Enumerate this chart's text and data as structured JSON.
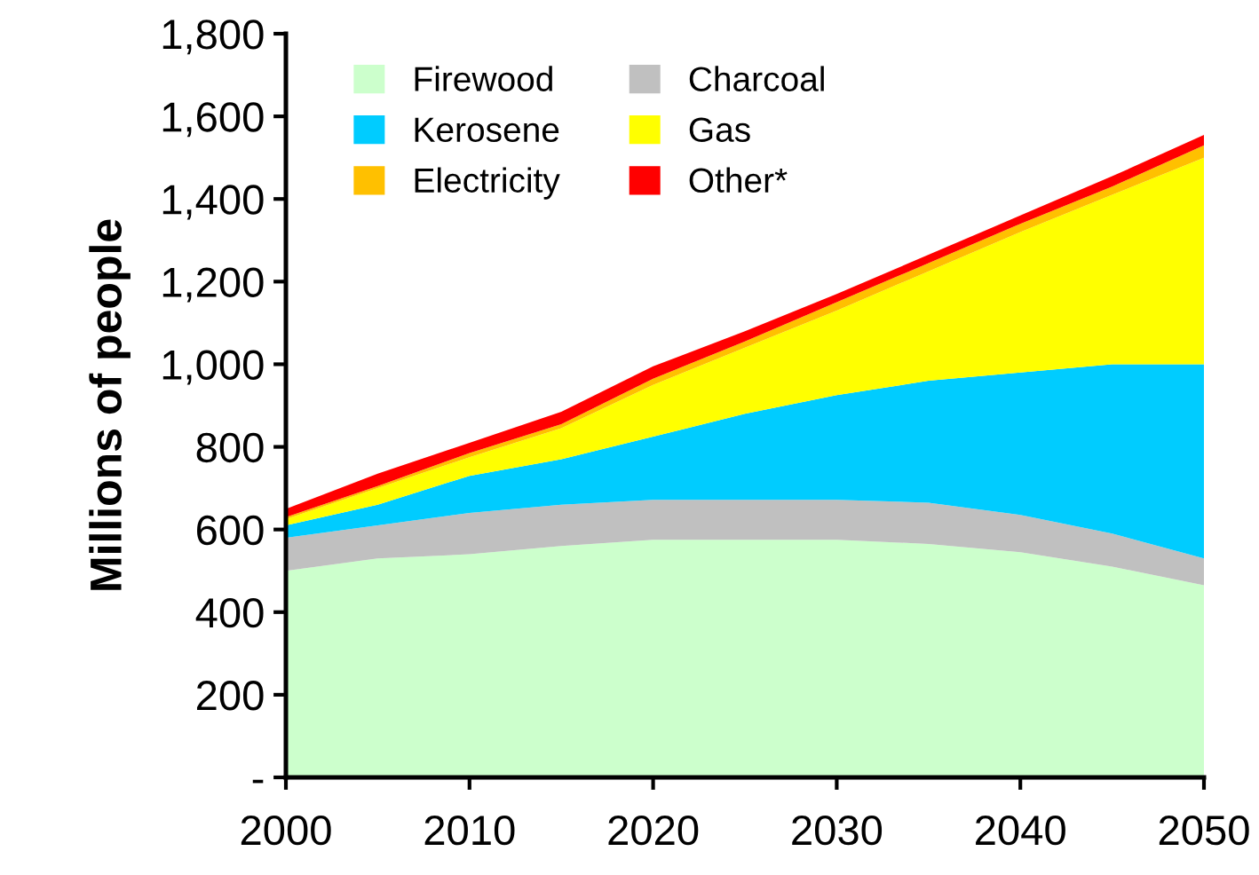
{
  "chart_data": {
    "type": "area",
    "stacked": true,
    "ylabel": "Millions of people",
    "x": [
      2000,
      2005,
      2010,
      2015,
      2020,
      2025,
      2030,
      2035,
      2040,
      2045,
      2050
    ],
    "series": [
      {
        "name": "Firewood",
        "color": "#ccffcc",
        "values": [
          500,
          530,
          540,
          560,
          575,
          575,
          575,
          565,
          545,
          510,
          465
        ]
      },
      {
        "name": "Charcoal",
        "color": "#c0c0c0",
        "values": [
          80,
          80,
          100,
          100,
          97,
          97,
          97,
          100,
          90,
          80,
          65
        ]
      },
      {
        "name": "Kerosene",
        "color": "#00ccff",
        "values": [
          30,
          50,
          90,
          110,
          153,
          208,
          253,
          295,
          345,
          410,
          470
        ]
      },
      {
        "name": "Gas",
        "color": "#ffff00",
        "values": [
          15,
          40,
          45,
          75,
          125,
          160,
          205,
          265,
          340,
          410,
          500
        ]
      },
      {
        "name": "Electricity",
        "color": "#ffc000",
        "values": [
          5,
          5,
          10,
          10,
          15,
          15,
          20,
          20,
          20,
          20,
          30
        ]
      },
      {
        "name": "Other*",
        "color": "#ff0000",
        "values": [
          20,
          30,
          25,
          30,
          30,
          25,
          20,
          20,
          20,
          25,
          25
        ]
      }
    ],
    "xlim": [
      2000,
      2050
    ],
    "xticks": [
      2000,
      2010,
      2020,
      2030,
      2040,
      2050
    ],
    "ylim": [
      0,
      1800
    ],
    "yticks": [
      {
        "value": 0,
        "label": "-"
      },
      {
        "value": 200,
        "label": "200"
      },
      {
        "value": 400,
        "label": "400"
      },
      {
        "value": 600,
        "label": "600"
      },
      {
        "value": 800,
        "label": "800"
      },
      {
        "value": 1000,
        "label": "1,000"
      },
      {
        "value": 1200,
        "label": "1,200"
      },
      {
        "value": 1400,
        "label": "1,400"
      },
      {
        "value": 1600,
        "label": "1,600"
      },
      {
        "value": 1800,
        "label": "1,800"
      }
    ],
    "grid": false,
    "legend": "top left"
  }
}
